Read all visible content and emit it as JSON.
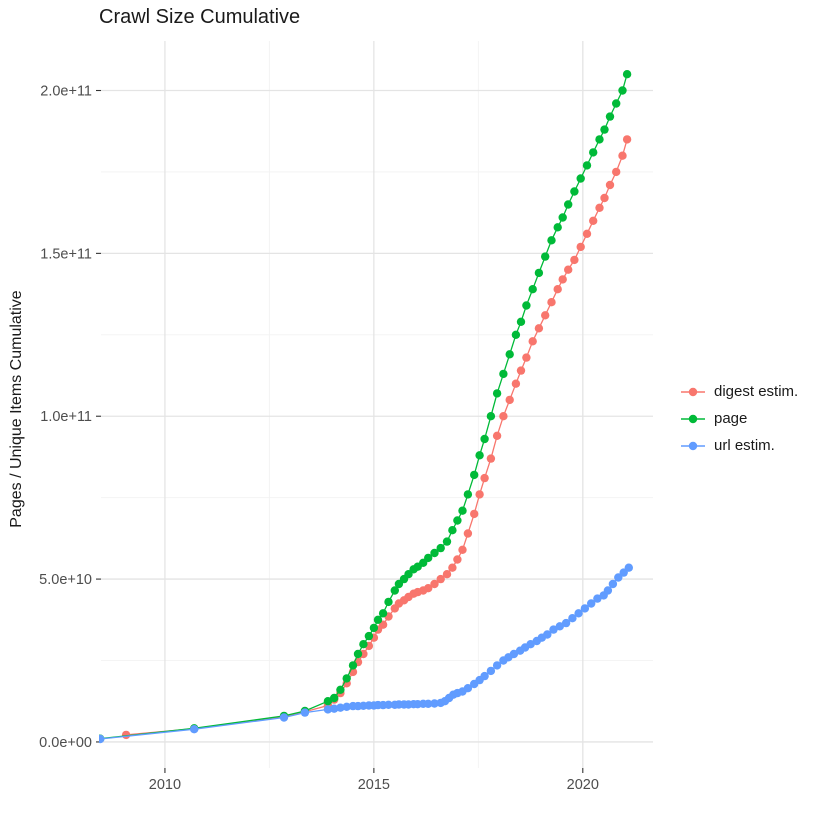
{
  "chart_data": {
    "type": "line",
    "title": "Crawl Size Cumulative",
    "xlabel": "",
    "ylabel": "Pages / Unique Items Cumulative",
    "legend_position": "right",
    "grid": true,
    "x_axis": {
      "ticks": [
        2010,
        2015,
        2020
      ],
      "tick_labels": [
        "2010",
        "2015",
        "2020"
      ],
      "minor_ticks": [
        2012.5,
        2017.5
      ],
      "range": [
        2008.47,
        2021.68
      ]
    },
    "y_axis": {
      "ticks": [
        0,
        50000000000.0,
        100000000000.0,
        150000000000.0,
        200000000000.0
      ],
      "tick_labels": [
        "0.0e+00",
        "5.0e+10",
        "1.0e+11",
        "1.5e+11",
        "2.0e+11"
      ],
      "minor_ticks": [
        25000000000.0,
        75000000000.0,
        125000000000.0,
        175000000000.0
      ],
      "range": [
        -8000000000.0,
        215200000000.0
      ]
    },
    "series": [
      {
        "name": "digest estim.",
        "color": "#F8766D",
        "points": [
          [
            2009.07,
            2150000000.0
          ],
          [
            2010.7,
            4100000000.0
          ],
          [
            2012.85,
            7800000000.0
          ],
          [
            2013.35,
            9300000000.0
          ],
          [
            2013.9,
            11200000000.0
          ],
          [
            2014.05,
            13000000000.0
          ],
          [
            2014.2,
            15000000000.0
          ],
          [
            2014.35,
            18000000000.0
          ],
          [
            2014.5,
            21500000000.0
          ],
          [
            2014.62,
            24500000000.0
          ],
          [
            2014.75,
            27000000000.0
          ],
          [
            2014.88,
            29500000000.0
          ],
          [
            2015.0,
            32000000000.0
          ],
          [
            2015.1,
            34500000000.0
          ],
          [
            2015.22,
            36000000000.0
          ],
          [
            2015.35,
            38500000000.0
          ],
          [
            2015.5,
            41000000000.0
          ],
          [
            2015.6,
            42500000000.0
          ],
          [
            2015.72,
            43500000000.0
          ],
          [
            2015.83,
            44500000000.0
          ],
          [
            2015.95,
            45500000000.0
          ],
          [
            2016.05,
            46000000000.0
          ],
          [
            2016.18,
            46500000000.0
          ],
          [
            2016.3,
            47200000000.0
          ],
          [
            2016.45,
            48500000000.0
          ],
          [
            2016.6,
            50000000000.0
          ],
          [
            2016.75,
            51500000000.0
          ],
          [
            2016.88,
            53500000000.0
          ],
          [
            2017.0,
            56000000000.0
          ],
          [
            2017.12,
            59000000000.0
          ],
          [
            2017.25,
            64000000000.0
          ],
          [
            2017.4,
            70000000000.0
          ],
          [
            2017.53,
            76000000000.0
          ],
          [
            2017.65,
            81000000000.0
          ],
          [
            2017.8,
            87000000000.0
          ],
          [
            2017.95,
            94000000000.0
          ],
          [
            2018.1,
            100000000000.0
          ],
          [
            2018.25,
            105000000000.0
          ],
          [
            2018.4,
            110000000000.0
          ],
          [
            2018.52,
            114000000000.0
          ],
          [
            2018.65,
            118000000000.0
          ],
          [
            2018.8,
            123000000000.0
          ],
          [
            2018.95,
            127000000000.0
          ],
          [
            2019.1,
            131000000000.0
          ],
          [
            2019.25,
            135000000000.0
          ],
          [
            2019.4,
            139000000000.0
          ],
          [
            2019.52,
            142000000000.0
          ],
          [
            2019.65,
            145000000000.0
          ],
          [
            2019.8,
            148000000000.0
          ],
          [
            2019.95,
            152000000000.0
          ],
          [
            2020.1,
            156000000000.0
          ],
          [
            2020.25,
            160000000000.0
          ],
          [
            2020.4,
            164000000000.0
          ],
          [
            2020.52,
            167000000000.0
          ],
          [
            2020.65,
            171000000000.0
          ],
          [
            2020.8,
            175000000000.0
          ],
          [
            2020.95,
            180000000000.0
          ],
          [
            2021.06,
            185000000000.0
          ]
        ]
      },
      {
        "name": "page",
        "color": "#00BA38",
        "points": [
          [
            2008.45,
            1000000000.0
          ],
          [
            2010.7,
            4200000000.0
          ],
          [
            2012.85,
            8000000000.0
          ],
          [
            2013.35,
            9500000000.0
          ],
          [
            2013.9,
            12500000000.0
          ],
          [
            2014.05,
            13500000000.0
          ],
          [
            2014.2,
            16000000000.0
          ],
          [
            2014.35,
            19500000000.0
          ],
          [
            2014.5,
            23500000000.0
          ],
          [
            2014.62,
            27000000000.0
          ],
          [
            2014.75,
            30000000000.0
          ],
          [
            2014.88,
            32500000000.0
          ],
          [
            2015.0,
            35000000000.0
          ],
          [
            2015.1,
            37500000000.0
          ],
          [
            2015.22,
            39500000000.0
          ],
          [
            2015.35,
            43000000000.0
          ],
          [
            2015.5,
            46500000000.0
          ],
          [
            2015.6,
            48500000000.0
          ],
          [
            2015.72,
            50000000000.0
          ],
          [
            2015.83,
            51500000000.0
          ],
          [
            2015.95,
            53000000000.0
          ],
          [
            2016.05,
            53800000000.0
          ],
          [
            2016.18,
            55000000000.0
          ],
          [
            2016.3,
            56500000000.0
          ],
          [
            2016.45,
            58000000000.0
          ],
          [
            2016.6,
            59500000000.0
          ],
          [
            2016.75,
            61500000000.0
          ],
          [
            2016.88,
            65000000000.0
          ],
          [
            2017.0,
            68000000000.0
          ],
          [
            2017.12,
            71000000000.0
          ],
          [
            2017.25,
            76000000000.0
          ],
          [
            2017.4,
            82000000000.0
          ],
          [
            2017.53,
            88000000000.0
          ],
          [
            2017.65,
            93000000000.0
          ],
          [
            2017.8,
            100000000000.0
          ],
          [
            2017.95,
            107000000000.0
          ],
          [
            2018.1,
            113000000000.0
          ],
          [
            2018.25,
            119000000000.0
          ],
          [
            2018.4,
            125000000000.0
          ],
          [
            2018.52,
            129000000000.0
          ],
          [
            2018.65,
            134000000000.0
          ],
          [
            2018.8,
            139000000000.0
          ],
          [
            2018.95,
            144000000000.0
          ],
          [
            2019.1,
            149000000000.0
          ],
          [
            2019.25,
            154000000000.0
          ],
          [
            2019.4,
            158000000000.0
          ],
          [
            2019.52,
            161000000000.0
          ],
          [
            2019.65,
            165000000000.0
          ],
          [
            2019.8,
            169000000000.0
          ],
          [
            2019.95,
            173000000000.0
          ],
          [
            2020.1,
            177000000000.0
          ],
          [
            2020.25,
            181000000000.0
          ],
          [
            2020.4,
            185000000000.0
          ],
          [
            2020.52,
            188000000000.0
          ],
          [
            2020.65,
            192000000000.0
          ],
          [
            2020.8,
            196000000000.0
          ],
          [
            2020.95,
            200000000000.0
          ],
          [
            2021.06,
            205000000000.0
          ]
        ]
      },
      {
        "name": "url estim.",
        "color": "#619CFF",
        "points": [
          [
            2008.45,
            900000000.0
          ],
          [
            2010.7,
            3900000000.0
          ],
          [
            2012.85,
            7500000000.0
          ],
          [
            2013.35,
            9000000000.0
          ],
          [
            2013.9,
            10000000000.0
          ],
          [
            2014.05,
            10200000000.0
          ],
          [
            2014.2,
            10500000000.0
          ],
          [
            2014.35,
            10800000000.0
          ],
          [
            2014.5,
            11000000000.0
          ],
          [
            2014.62,
            11000000000.0
          ],
          [
            2014.75,
            11100000000.0
          ],
          [
            2014.88,
            11200000000.0
          ],
          [
            2015.0,
            11200000000.0
          ],
          [
            2015.1,
            11300000000.0
          ],
          [
            2015.22,
            11300000000.0
          ],
          [
            2015.35,
            11400000000.0
          ],
          [
            2015.5,
            11400000000.0
          ],
          [
            2015.6,
            11500000000.0
          ],
          [
            2015.72,
            11500000000.0
          ],
          [
            2015.83,
            11500000000.0
          ],
          [
            2015.95,
            11600000000.0
          ],
          [
            2016.05,
            11600000000.0
          ],
          [
            2016.18,
            11700000000.0
          ],
          [
            2016.3,
            11700000000.0
          ],
          [
            2016.45,
            11800000000.0
          ],
          [
            2016.6,
            12000000000.0
          ],
          [
            2016.7,
            12500000000.0
          ],
          [
            2016.8,
            13500000000.0
          ],
          [
            2016.9,
            14500000000.0
          ],
          [
            2017.0,
            15000000000.0
          ],
          [
            2017.12,
            15500000000.0
          ],
          [
            2017.25,
            16500000000.0
          ],
          [
            2017.4,
            17800000000.0
          ],
          [
            2017.53,
            19000000000.0
          ],
          [
            2017.65,
            20200000000.0
          ],
          [
            2017.8,
            21800000000.0
          ],
          [
            2017.95,
            23500000000.0
          ],
          [
            2018.1,
            25000000000.0
          ],
          [
            2018.22,
            26000000000.0
          ],
          [
            2018.35,
            27000000000.0
          ],
          [
            2018.5,
            28000000000.0
          ],
          [
            2018.62,
            29000000000.0
          ],
          [
            2018.75,
            30000000000.0
          ],
          [
            2018.9,
            31000000000.0
          ],
          [
            2019.02,
            32000000000.0
          ],
          [
            2019.15,
            33000000000.0
          ],
          [
            2019.3,
            34500000000.0
          ],
          [
            2019.45,
            35500000000.0
          ],
          [
            2019.6,
            36500000000.0
          ],
          [
            2019.75,
            38000000000.0
          ],
          [
            2019.9,
            39500000000.0
          ],
          [
            2020.05,
            41000000000.0
          ],
          [
            2020.2,
            42500000000.0
          ],
          [
            2020.35,
            44000000000.0
          ],
          [
            2020.5,
            45000000000.0
          ],
          [
            2020.6,
            46500000000.0
          ],
          [
            2020.72,
            48500000000.0
          ],
          [
            2020.85,
            50500000000.0
          ],
          [
            2020.98,
            52000000000.0
          ],
          [
            2021.1,
            53500000000.0
          ]
        ]
      }
    ]
  },
  "colors": {
    "background": "#FFFFFF",
    "grid_major": "#E4E4E4",
    "grid_minor": "#F2F2F2",
    "tick_mark": "#333333",
    "tick_label": "#4D4D4D",
    "text": "#1A1A1A",
    "series_digest": "#F8766D",
    "series_page": "#00BA38",
    "series_url": "#619CFF"
  }
}
